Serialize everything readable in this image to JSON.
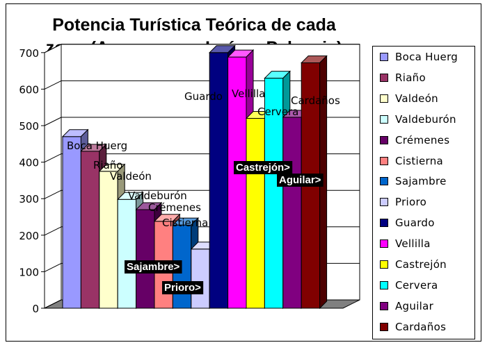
{
  "window": {
    "title": "Potencia Turística Teórica de cada zona (Accesos por León y Palencia)"
  },
  "chart_data": {
    "type": "bar",
    "title": "Potencia Turística Teórica de cada\nzona (Accesos por León y Palencia)",
    "xlabel": "",
    "ylabel": "",
    "ylim": [
      0,
      700
    ],
    "yticks": [
      "0",
      "100",
      "200",
      "300",
      "400",
      "500",
      "600",
      "700"
    ],
    "grid": true,
    "legend_position": "right",
    "three_d": true,
    "categories": [
      "Boca Huerg",
      "Riaño",
      "Valdeón",
      "Valdeburón",
      "Crémenes",
      "Cistierna",
      "Sajambre",
      "Prioro",
      "Guardo",
      "Vellilla",
      "Castrejón",
      "Cervera",
      "Aguilar",
      "Cardaños"
    ],
    "values": [
      470,
      430,
      375,
      298,
      270,
      238,
      228,
      162,
      700,
      688,
      520,
      630,
      523,
      672
    ],
    "colors": [
      "#9999ff",
      "#993366",
      "#ffffcc",
      "#ccffff",
      "#660066",
      "#ff8080",
      "#0066cc",
      "#ccccff",
      "#000080",
      "#ff00ff",
      "#ffff00",
      "#00ffff",
      "#800080",
      "#800000"
    ],
    "data_labels": [
      {
        "text": "Boca Huerg",
        "style": "plain"
      },
      {
        "text": "Riaño",
        "style": "plain"
      },
      {
        "text": "Valdeón",
        "style": "plain"
      },
      {
        "text": "Valdeburón",
        "style": "plain"
      },
      {
        "text": "Crémenes",
        "style": "plain"
      },
      {
        "text": "Cistierna",
        "style": "plain"
      },
      {
        "text": "Sajambre>",
        "style": "boxed"
      },
      {
        "text": "Prioro>",
        "style": "boxed"
      },
      {
        "text": "Guardo",
        "style": "plain"
      },
      {
        "text": "Vellilla",
        "style": "plain"
      },
      {
        "text": "Castrejón>",
        "style": "boxed"
      },
      {
        "text": "Cervera",
        "style": "plain"
      },
      {
        "text": "Aguilar>",
        "style": "boxed"
      },
      {
        "text": "Cardaños",
        "style": "plain"
      }
    ]
  }
}
